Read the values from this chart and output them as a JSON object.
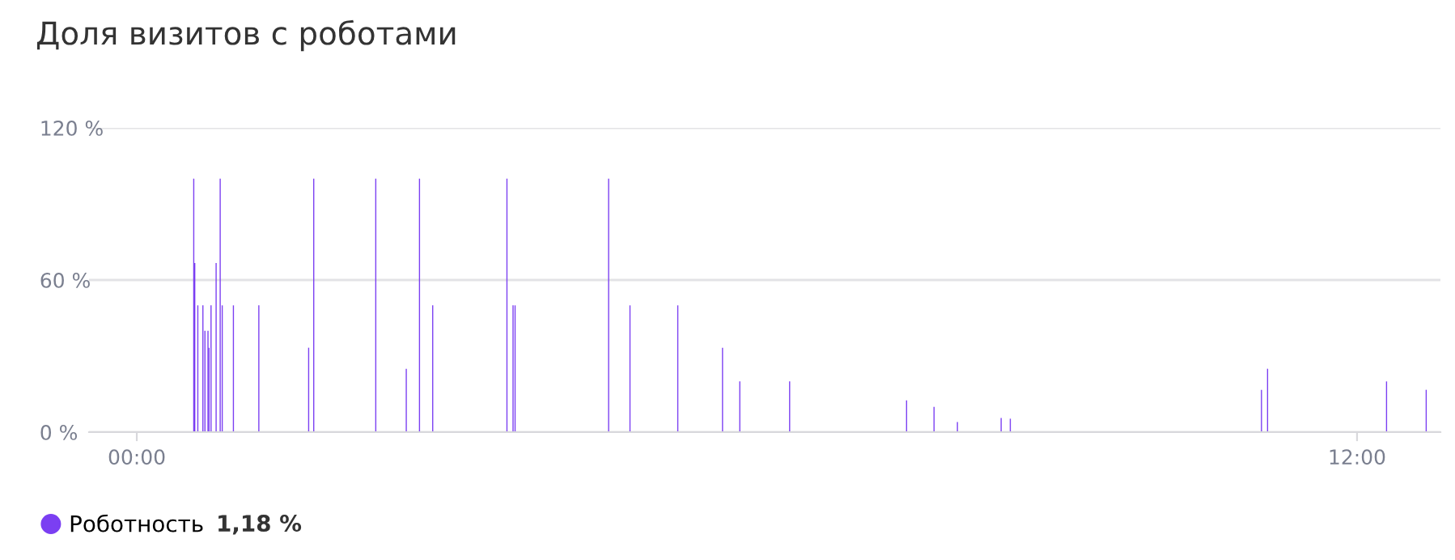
{
  "chart_data": {
    "type": "bar",
    "title": "Доля визитов с роботами",
    "x": [
      0.56,
      0.57,
      0.6,
      0.65,
      0.67,
      0.7,
      0.71,
      0.73,
      0.78,
      0.82,
      0.84,
      0.95,
      1.2,
      1.69,
      1.74,
      2.35,
      2.65,
      2.78,
      2.91,
      3.64,
      3.7,
      3.72,
      4.64,
      4.85,
      5.32,
      5.76,
      5.93,
      6.42,
      7.57,
      7.84,
      8.07,
      8.5,
      8.59,
      11.06,
      11.12,
      12.29,
      12.68
    ],
    "series": [
      {
        "name": "Роботность",
        "color": "#7b3ff2",
        "values": [
          100,
          66.7,
          50,
          50,
          40,
          40,
          33.3,
          50,
          66.7,
          100,
          50,
          50,
          50,
          33.3,
          100,
          100,
          25,
          100,
          50,
          100,
          50,
          50,
          100,
          50,
          50,
          33.3,
          20,
          20,
          12.5,
          10,
          4,
          5.6,
          5.3,
          16.7,
          25,
          20,
          16.7
        ]
      }
    ],
    "xlim": [
      -0.47,
      12.82
    ],
    "xticks": [
      {
        "value": 0,
        "label": "00:00"
      },
      {
        "value": 12,
        "label": "12:00"
      }
    ],
    "ylim": [
      0,
      120
    ],
    "yticks": [
      {
        "value": 0,
        "label": "0 %"
      },
      {
        "value": 60,
        "label": "60 %"
      },
      {
        "value": 120,
        "label": "120 %"
      }
    ],
    "grid": "y",
    "legend": "bottom left",
    "annotations": [
      "1,18 %"
    ]
  }
}
